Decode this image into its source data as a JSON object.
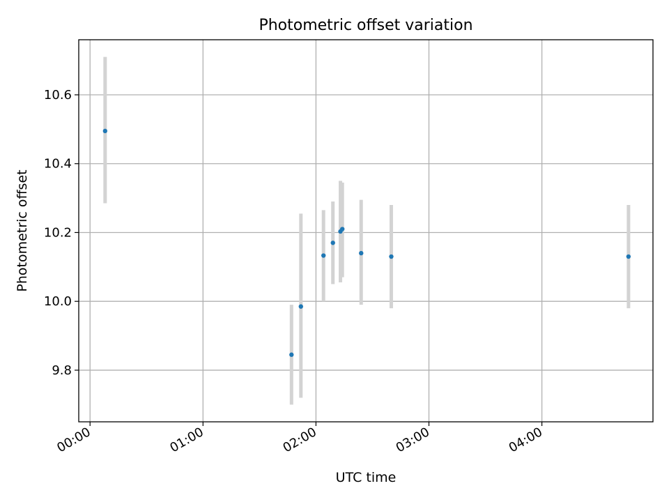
{
  "chart_data": {
    "type": "scatter",
    "title": "Photometric offset variation",
    "xlabel": "UTC time",
    "ylabel": "Photometric offset",
    "xlim": [
      "23:54",
      "04:59"
    ],
    "ylim": [
      9.65,
      10.76
    ],
    "grid": true,
    "x_ticks": [
      "00:00",
      "01:00",
      "02:00",
      "03:00",
      "04:00"
    ],
    "y_ticks": [
      "9.8",
      "10.0",
      "10.2",
      "10.4",
      "10.6"
    ],
    "marker_color": "#1f77b4",
    "errorbar_color": "#d3d3d3",
    "points": [
      {
        "x": "00:08",
        "y": 10.495,
        "ylow": 10.285,
        "yhigh": 10.71
      },
      {
        "x": "01:47",
        "y": 9.845,
        "ylow": 9.7,
        "yhigh": 9.99
      },
      {
        "x": "01:52",
        "y": 9.985,
        "ylow": 9.72,
        "yhigh": 10.255
      },
      {
        "x": "02:04",
        "y": 10.133,
        "ylow": 10.0,
        "yhigh": 10.265
      },
      {
        "x": "02:09",
        "y": 10.17,
        "ylow": 10.05,
        "yhigh": 10.29
      },
      {
        "x": "02:13",
        "y": 10.203,
        "ylow": 10.055,
        "yhigh": 10.35
      },
      {
        "x": "02:14",
        "y": 10.21,
        "ylow": 10.07,
        "yhigh": 10.345
      },
      {
        "x": "02:24",
        "y": 10.14,
        "ylow": 9.99,
        "yhigh": 10.295
      },
      {
        "x": "02:40",
        "y": 10.13,
        "ylow": 9.98,
        "yhigh": 10.28
      },
      {
        "x": "04:46",
        "y": 10.13,
        "ylow": 9.98,
        "yhigh": 10.28
      }
    ]
  }
}
